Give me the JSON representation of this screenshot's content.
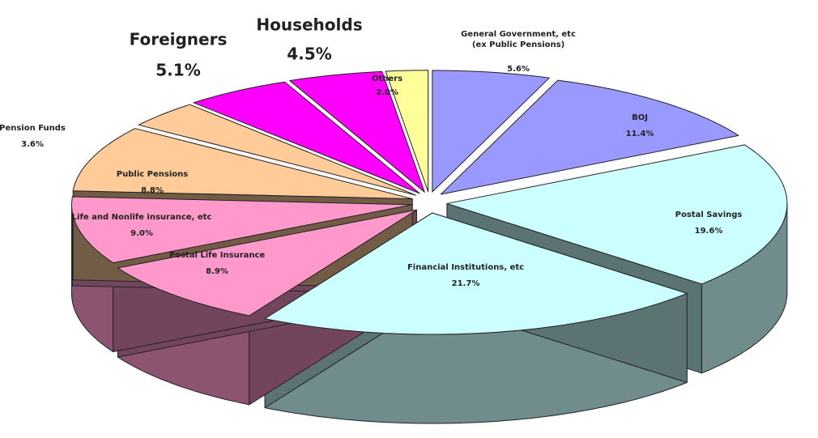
{
  "chart_data": {
    "type": "pie",
    "categories": [
      "General Government, etc\n(ex Public Pensions)",
      "BOJ",
      "Postal Savings",
      "Financial Institutions, etc",
      "Postal Life Insurance",
      "Life and Nonlife insurance, etc",
      "Public Pensions",
      "Pension Funds",
      "Foreigners",
      "Households",
      "Others"
    ],
    "values": [
      5.6,
      11.4,
      19.6,
      21.7,
      8.9,
      9.0,
      8.8,
      3.6,
      5.1,
      4.5,
      2.0
    ],
    "value_labels": [
      "5.6%",
      "11.4%",
      "19.6%",
      "21.7%",
      "8.9%",
      "9.0%",
      "8.8%",
      "3.6%",
      "5.1%",
      "4.5%",
      "2.0%"
    ],
    "colors": [
      "#9999ff",
      "#9999ff",
      "#ccffff",
      "#ccffff",
      "#ff99cc",
      "#ff99cc",
      "#ffcc99",
      "#ffcc99",
      "#ff00ff",
      "#ff00ff",
      "#ffff99"
    ],
    "three_d": true
  }
}
